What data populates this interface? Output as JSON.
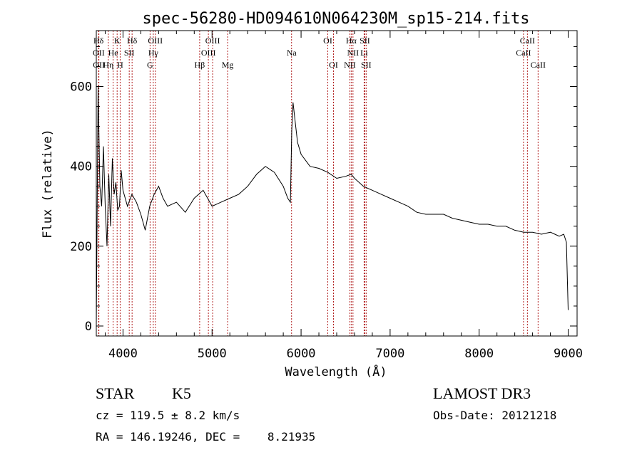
{
  "chart_data": {
    "type": "line",
    "title": "spec-56280-HD094610N064230M_sp15-214.fits",
    "xlabel": "Wavelength (Å)",
    "ylabel": "Flux (relative)",
    "xlim": [
      3700,
      9100
    ],
    "ylim": [
      -25,
      740
    ],
    "x_ticks": [
      4000,
      5000,
      6000,
      7000,
      8000,
      9000
    ],
    "y_ticks": [
      0,
      200,
      400,
      600
    ],
    "grid": false,
    "series": [
      {
        "color": "#000000",
        "x": [
          3700,
          3720,
          3740,
          3760,
          3780,
          3800,
          3820,
          3840,
          3860,
          3880,
          3900,
          3920,
          3940,
          3960,
          3980,
          4000,
          4050,
          4100,
          4150,
          4200,
          4250,
          4300,
          4350,
          4400,
          4450,
          4500,
          4600,
          4700,
          4800,
          4900,
          5000,
          5100,
          5200,
          5300,
          5400,
          5500,
          5600,
          5700,
          5800,
          5850,
          5880,
          5895,
          5910,
          5930,
          5960,
          6000,
          6100,
          6200,
          6300,
          6400,
          6500,
          6563,
          6600,
          6700,
          6800,
          6900,
          7000,
          7100,
          7200,
          7300,
          7400,
          7500,
          7600,
          7700,
          7800,
          7900,
          8000,
          8100,
          8200,
          8300,
          8400,
          8500,
          8600,
          8700,
          8800,
          8850,
          8900,
          8950,
          8980,
          9000
        ],
        "y": [
          0,
          600,
          350,
          300,
          450,
          300,
          200,
          380,
          250,
          420,
          330,
          360,
          290,
          300,
          390,
          340,
          300,
          330,
          310,
          280,
          240,
          300,
          330,
          350,
          320,
          300,
          310,
          285,
          320,
          340,
          300,
          310,
          320,
          330,
          350,
          380,
          400,
          385,
          350,
          320,
          310,
          490,
          560,
          520,
          460,
          430,
          400,
          395,
          385,
          370,
          375,
          380,
          370,
          350,
          340,
          330,
          320,
          310,
          300,
          285,
          280,
          280,
          280,
          270,
          265,
          260,
          255,
          255,
          250,
          250,
          240,
          235,
          235,
          230,
          235,
          230,
          225,
          230,
          210,
          40
        ]
      }
    ],
    "spectral_lines": [
      {
        "label": "Hδ",
        "wavelength": 3725,
        "row": 1
      },
      {
        "label": "K",
        "wavelength": 3934,
        "row": 1
      },
      {
        "label": "Hδ",
        "wavelength": 4102,
        "row": 1
      },
      {
        "label": "OIII",
        "wavelength": 4363,
        "row": 1
      },
      {
        "label": "OIII",
        "wavelength": 5007,
        "row": 1
      },
      {
        "label": "OI",
        "wavelength": 6300,
        "row": 1
      },
      {
        "label": "Hα",
        "wavelength": 6563,
        "row": 1
      },
      {
        "label": "SII",
        "wavelength": 6716,
        "row": 1
      },
      {
        "label": "CaII",
        "wavelength": 8542,
        "row": 1
      },
      {
        "label": "OII",
        "wavelength": 3727,
        "row": 2
      },
      {
        "label": "He",
        "wavelength": 3889,
        "row": 2
      },
      {
        "label": "SII",
        "wavelength": 4070,
        "row": 2
      },
      {
        "label": "Hγ",
        "wavelength": 4340,
        "row": 2
      },
      {
        "label": "OIII",
        "wavelength": 4959,
        "row": 2
      },
      {
        "label": "Na",
        "wavelength": 5893,
        "row": 2
      },
      {
        "label": "NII",
        "wavelength": 6583,
        "row": 2
      },
      {
        "label": "Li",
        "wavelength": 6708,
        "row": 2
      },
      {
        "label": "CaII",
        "wavelength": 8498,
        "row": 2
      },
      {
        "label": "OII",
        "wavelength": 3729,
        "row": 3
      },
      {
        "label": "Hη",
        "wavelength": 3835,
        "row": 3
      },
      {
        "label": "H",
        "wavelength": 3968,
        "row": 3
      },
      {
        "label": "G",
        "wavelength": 4304,
        "row": 3
      },
      {
        "label": "Hβ",
        "wavelength": 4861,
        "row": 3
      },
      {
        "label": "Mg",
        "wavelength": 5175,
        "row": 3
      },
      {
        "label": "OI",
        "wavelength": 6364,
        "row": 3
      },
      {
        "label": "NII",
        "wavelength": 6548,
        "row": 3
      },
      {
        "label": "SII",
        "wavelength": 6731,
        "row": 3
      },
      {
        "label": "CaII",
        "wavelength": 8662,
        "row": 3
      }
    ]
  },
  "info": {
    "object_class": "STAR",
    "subclass": "K5",
    "survey": "LAMOST DR3",
    "redshift": "cz = 119.5 ± 8.2 km/s",
    "obs_date": "Obs-Date: 20121218",
    "coords": "RA = 146.19246, DEC =    8.21935"
  }
}
